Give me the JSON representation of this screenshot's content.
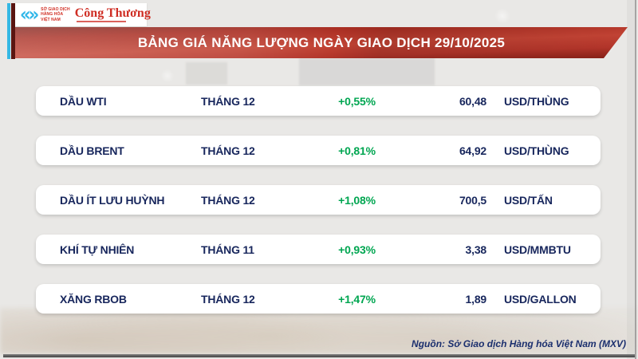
{
  "header": {
    "mxv_mark_glyph": "«»",
    "mxv_logo_text": [
      "SỞ GIAO DỊCH",
      "HÀNG HÓA",
      "VIỆT NAM"
    ],
    "congthuong_logo_text": "Công Thương"
  },
  "chart_data": {
    "type": "table",
    "title": "BẢNG GIÁ NĂNG LƯỢNG NGÀY GIAO DỊCH 29/10/2025",
    "source": "Nguồn: Sở Giao dịch Hàng hóa Việt Nam (MXV)",
    "columns": [
      "name",
      "month",
      "change",
      "price",
      "unit"
    ],
    "rows": [
      {
        "name": "DẦU WTI",
        "month": "THÁNG 12",
        "change": "+0,55%",
        "change_value": 0.55,
        "price": "60,48",
        "price_value": 60.48,
        "unit": "USD/THÙNG"
      },
      {
        "name": "DẦU BRENT",
        "month": "THÁNG 12",
        "change": "+0,81%",
        "change_value": 0.81,
        "price": "64,92",
        "price_value": 64.92,
        "unit": "USD/THÙNG"
      },
      {
        "name": "DẦU ÍT LƯU HUỲNH",
        "month": "THÁNG 12",
        "change": "+1,08%",
        "change_value": 1.08,
        "price": "700,5",
        "price_value": 700.5,
        "unit": "USD/TẤN"
      },
      {
        "name": "KHÍ TỰ NHIÊN",
        "month": "THÁNG 11",
        "change": "+0,93%",
        "change_value": 0.93,
        "price": "3,38",
        "price_value": 3.38,
        "unit": "USD/MMBTU"
      },
      {
        "name": "XĂNG RBOB",
        "month": "THÁNG 12",
        "change": "+1,47%",
        "change_value": 1.47,
        "price": "1,89",
        "price_value": 1.89,
        "unit": "USD/GALLON"
      }
    ]
  },
  "colors": {
    "banner_red": "#c0392b",
    "navy_text": "#17265c",
    "positive_green": "#00a651",
    "mxv_cyan": "#2eb6e8",
    "logo_red": "#cf2e24"
  }
}
